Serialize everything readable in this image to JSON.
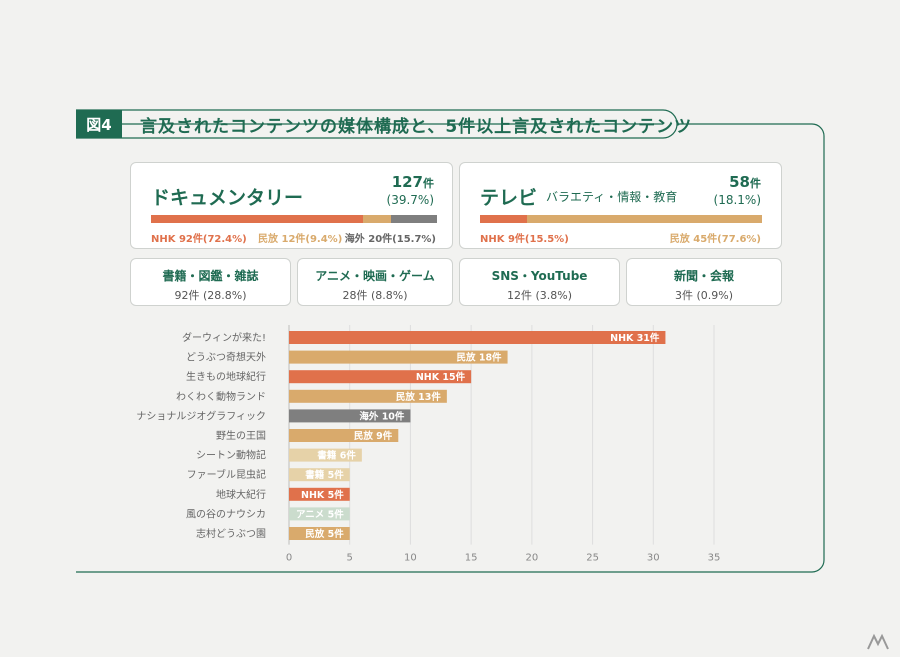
{
  "figure": {
    "badge": "図4",
    "title": "言及されたコンテンツの媒体構成と、5件以上言及されたコンテンツ"
  },
  "colors": {
    "nhk": "#e0714b",
    "minpo": "#d9aa6c",
    "kaigai": "#7f7f7f",
    "shoseki": "#e6d2a8",
    "anime": "#cbdccd",
    "accent": "#1f6b52"
  },
  "documentary": {
    "title": "ドキュメンタリー",
    "count": "127",
    "unit": "件",
    "pct": "(39.7%)",
    "segments": [
      {
        "name": "NHK",
        "label": "NHK 92件(72.4%)",
        "share": 72.4,
        "color": "#e0714b"
      },
      {
        "name": "民放",
        "label": "民放 12件(9.4%)",
        "share": 9.4,
        "color": "#d9aa6c"
      },
      {
        "name": "海外",
        "label": "海外 20件(15.7%)",
        "share": 15.7,
        "color": "#7f7f7f"
      }
    ]
  },
  "tv": {
    "title": "テレビ",
    "subgenre": "バラエティ・情報・教育",
    "count": "58",
    "unit": "件",
    "pct": "(18.1%)",
    "segments": [
      {
        "name": "NHK",
        "label": "NHK 9件(15.5%)",
        "share": 15.5,
        "color": "#e0714b"
      },
      {
        "name": "民放",
        "label": "民放 45件(77.6%)",
        "share": 77.6,
        "color": "#d9aa6c"
      }
    ]
  },
  "small_cards": [
    {
      "title": "書籍・図鑑・雑誌",
      "value": "92件 (28.8%)"
    },
    {
      "title": "アニメ・映画・ゲーム",
      "value": "28件 (8.8%)"
    },
    {
      "title": "SNS・YouTube",
      "value": "12件 (3.8%)"
    },
    {
      "title": "新聞・会報",
      "value": "3件 (0.9%)"
    }
  ],
  "chart_data": {
    "type": "bar",
    "orientation": "horizontal",
    "categories": [
      "ダーウィンが来た!",
      "どうぶつ奇想天外",
      "生きもの地球紀行",
      "わくわく動物ランド",
      "ナショナルジオグラフィック",
      "野生の王国",
      "シートン動物記",
      "ファーブル昆虫記",
      "地球大紀行",
      "風の谷のナウシカ",
      "志村どうぶつ園"
    ],
    "values": [
      31,
      18,
      15,
      13,
      10,
      9,
      6,
      5,
      5,
      5,
      5
    ],
    "bar_labels": [
      "NHK 31件",
      "民放 18件",
      "NHK 15件",
      "民放 13件",
      "海外 10件",
      "民放 9件",
      "書籍 6件",
      "書籍 5件",
      "NHK 5件",
      "アニメ 5件",
      "民放 5件"
    ],
    "bar_colors": [
      "#e0714b",
      "#d9aa6c",
      "#e0714b",
      "#d9aa6c",
      "#7f7f7f",
      "#d9aa6c",
      "#e6d2a8",
      "#e6d2a8",
      "#e0714b",
      "#cbdccd",
      "#d9aa6c"
    ],
    "xlim": [
      0,
      35
    ],
    "xticks": [
      0,
      5,
      10,
      15,
      20,
      25,
      30,
      35
    ],
    "grid": true
  }
}
